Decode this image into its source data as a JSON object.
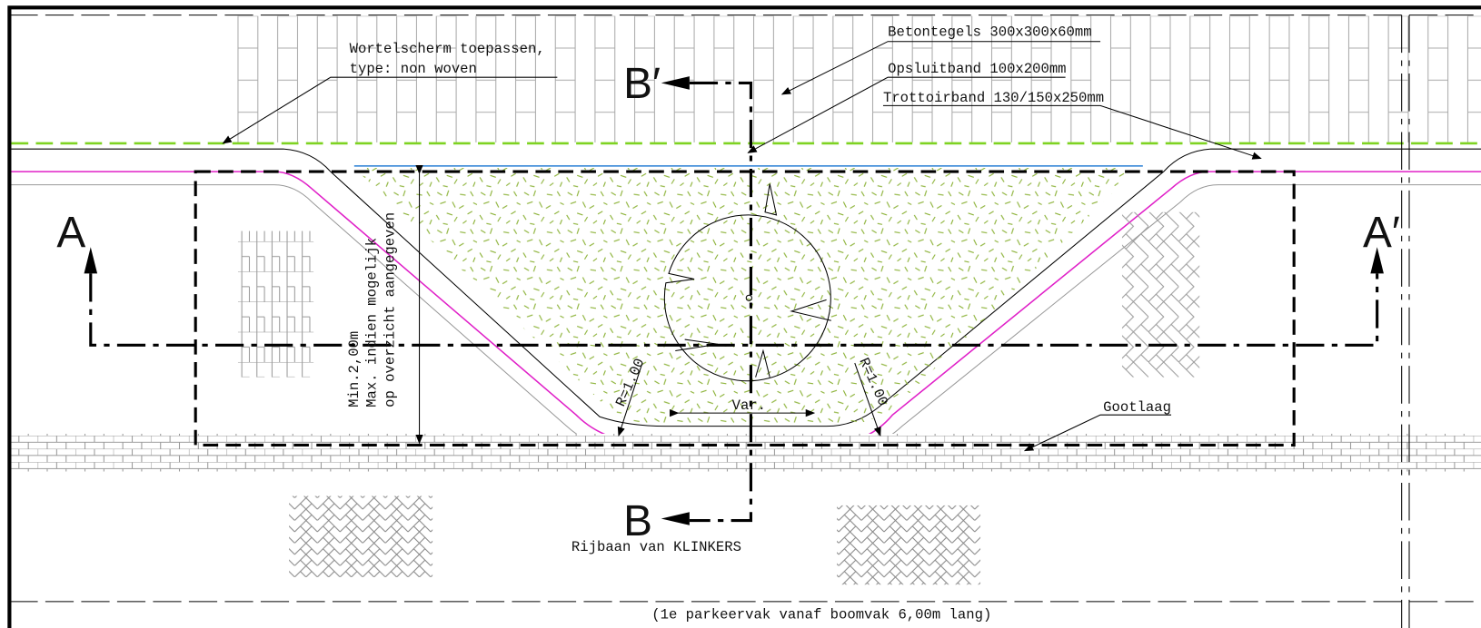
{
  "labels": {
    "wortelscherm": [
      "Wortelscherm toepassen,",
      "type: non woven"
    ],
    "betontegels": "Betontegels 300x300x60mm",
    "opsluitband": "Opsluitband 100x200mm",
    "trottoirband": "Trottoirband 130/150x250mm",
    "section_b_top": "B′",
    "section_b_bottom": "B",
    "section_a_left": "A",
    "section_a_right": "A′",
    "dimension_note": [
      "Min.2,00m",
      "Max. indien mogelijk",
      "op overzicht aangegeven"
    ],
    "radius_left": "R=1.00",
    "radius_right": "R=1.00",
    "variable": "Var.",
    "gootlaag": "Gootlaag",
    "rijbaan": "Rijbaan van KLINKERS",
    "parkeervak": "(1e parkeervak vanaf boomvak 6,00m lang)"
  }
}
